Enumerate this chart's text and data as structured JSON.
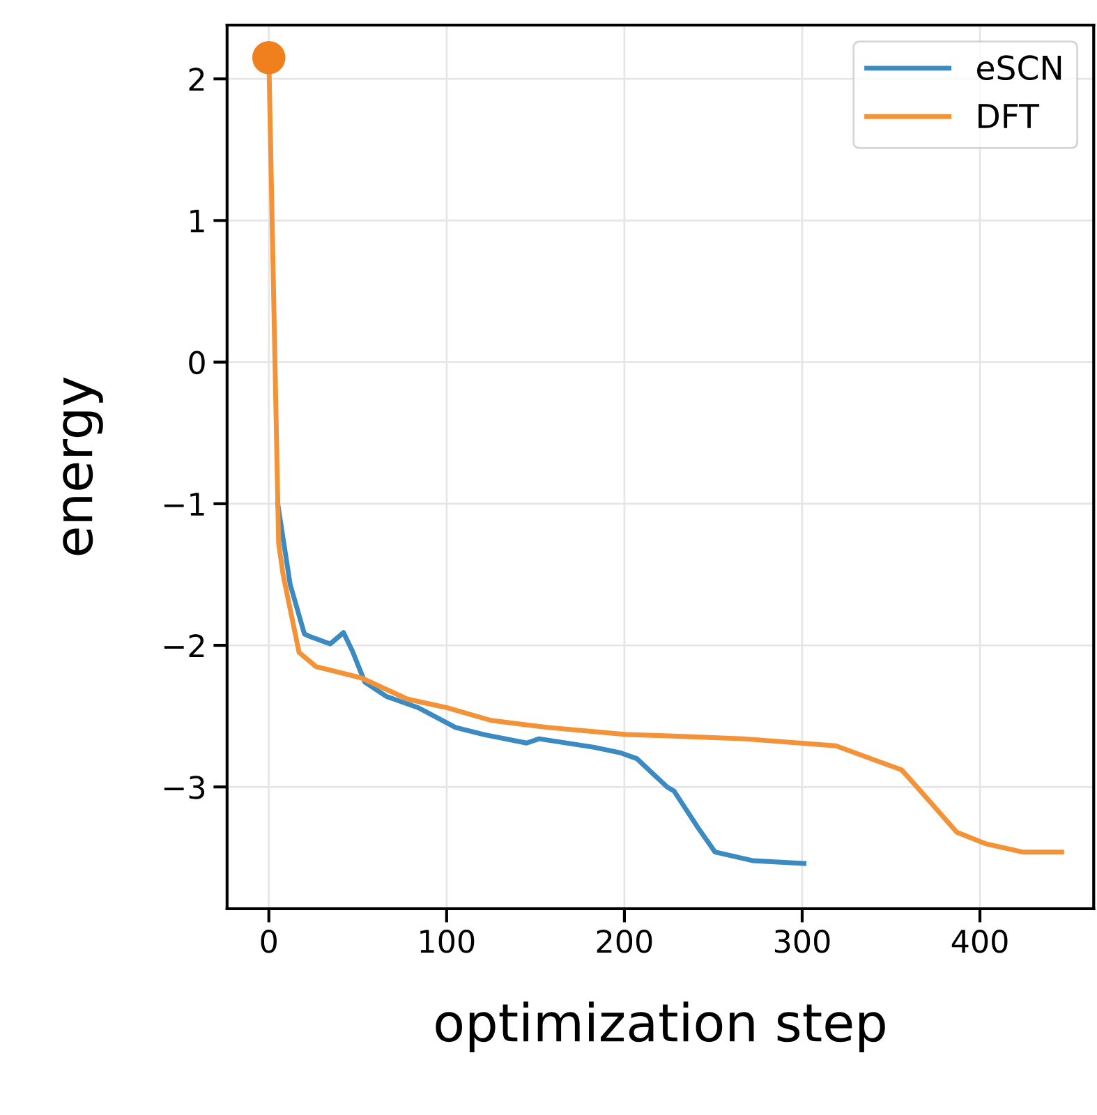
{
  "chart_data": {
    "type": "line",
    "xlabel": "optimization step",
    "ylabel": "energy",
    "xlim": [
      -23.5,
      464
    ],
    "ylim": [
      -3.86,
      2.38
    ],
    "xticks": [
      0,
      100,
      200,
      300,
      400
    ],
    "yticks": [
      {
        "value": -3,
        "label": "−3"
      },
      {
        "value": -2,
        "label": "−2"
      },
      {
        "value": -1,
        "label": "−1"
      },
      0,
      1,
      2
    ],
    "grid": true,
    "legend": "top right",
    "series": [
      {
        "name": "eSCN",
        "color": "#3b8bc2",
        "x": [
          5,
          12,
          20,
          23.5,
          34.5,
          42,
          47,
          54,
          66,
          84,
          105,
          121,
          145,
          152,
          183,
          198,
          207,
          224,
          228,
          241,
          251,
          272,
          301
        ],
        "values": [
          -1.0,
          -1.57,
          -1.92,
          -1.94,
          -1.99,
          -1.91,
          -2.04,
          -2.26,
          -2.36,
          -2.44,
          -2.58,
          -2.63,
          -2.69,
          -2.66,
          -2.72,
          -2.76,
          -2.8,
          -3.0,
          -3.03,
          -3.28,
          -3.46,
          -3.52,
          -3.54
        ]
      },
      {
        "name": "DFT",
        "color": "#f39237",
        "x": [
          0,
          5.5,
          8,
          17,
          26.5,
          52,
          78,
          100,
          125,
          157,
          201,
          225,
          267,
          319,
          356,
          366,
          387,
          403,
          424,
          446
        ],
        "values": [
          2.15,
          -1.28,
          -1.5,
          -2.05,
          -2.15,
          -2.23,
          -2.38,
          -2.44,
          -2.53,
          -2.58,
          -2.63,
          -2.64,
          -2.66,
          -2.71,
          -2.88,
          -3.02,
          -3.32,
          -3.4,
          -3.46,
          -3.46
        ]
      },
      {
        "type": "scatter",
        "color": "#f07f1e",
        "x": [
          0
        ],
        "values": [
          2.15
        ],
        "marker": "circle"
      }
    ]
  }
}
